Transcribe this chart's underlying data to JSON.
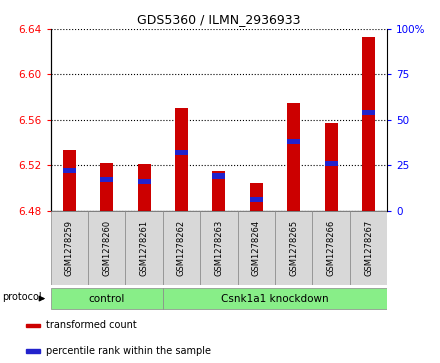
{
  "title": "GDS5360 / ILMN_2936933",
  "samples": [
    "GSM1278259",
    "GSM1278260",
    "GSM1278261",
    "GSM1278262",
    "GSM1278263",
    "GSM1278264",
    "GSM1278265",
    "GSM1278266",
    "GSM1278267"
  ],
  "transformed_count": [
    6.533,
    6.522,
    6.521,
    6.57,
    6.515,
    6.504,
    6.575,
    6.557,
    6.633
  ],
  "percentile_rank": [
    22,
    17,
    16,
    32,
    19,
    6,
    38,
    26,
    54
  ],
  "ylim_left": [
    6.48,
    6.64
  ],
  "ylim_right": [
    0,
    100
  ],
  "yticks_left": [
    6.48,
    6.52,
    6.56,
    6.6,
    6.64
  ],
  "yticks_right": [
    0,
    25,
    50,
    75,
    100
  ],
  "bar_color": "#cc0000",
  "blue_color": "#2222cc",
  "base_value": 6.48,
  "bar_width": 0.35,
  "protocol_groups": [
    {
      "label": "control",
      "start": 0,
      "end": 3
    },
    {
      "label": "Csnk1a1 knockdown",
      "start": 3,
      "end": 9
    }
  ],
  "protocol_bg": "#88ee88",
  "sample_bg": "#d8d8d8",
  "legend_items": [
    {
      "label": "transformed count",
      "color": "#cc0000"
    },
    {
      "label": "percentile rank within the sample",
      "color": "#2222cc"
    }
  ]
}
